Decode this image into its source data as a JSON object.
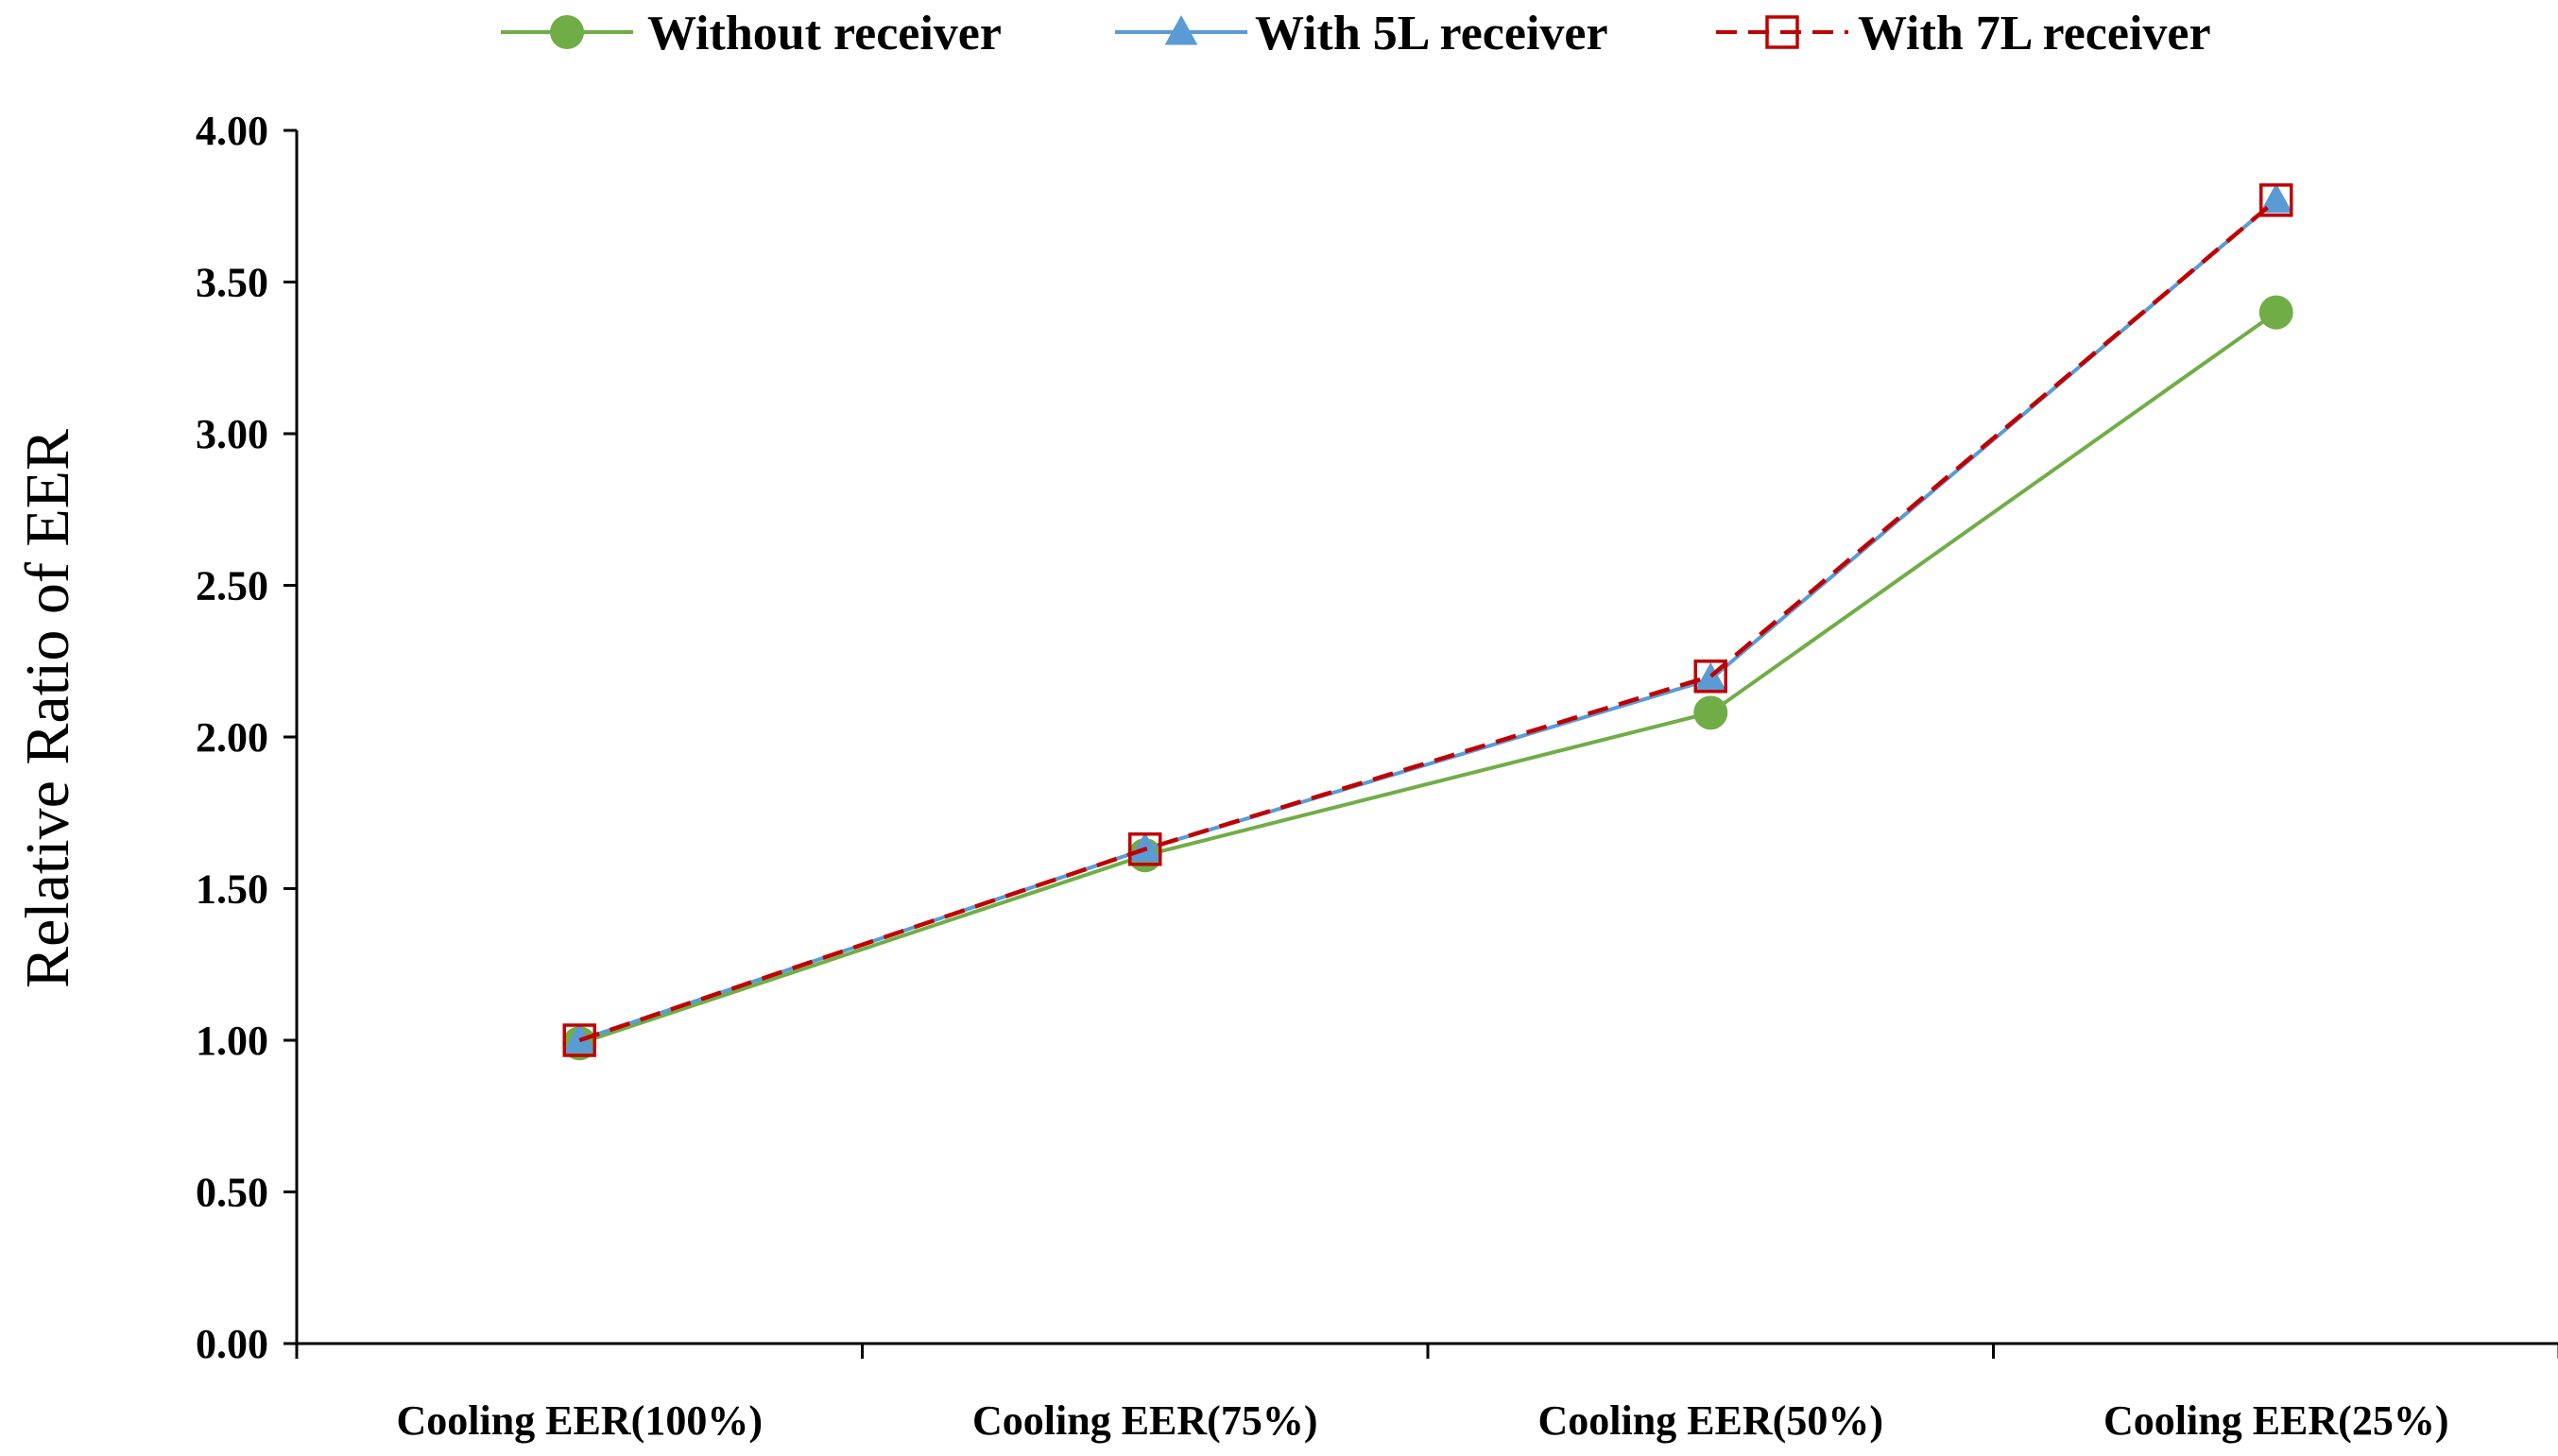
{
  "chart_data": {
    "type": "line",
    "title": "",
    "xlabel": "",
    "ylabel": "Relative Ratio  of  EER",
    "categories": [
      "Cooling EER(100%)",
      "Cooling EER(75%)",
      "Cooling EER(50%)",
      "Cooling EER(25%)"
    ],
    "ylim": [
      0,
      4
    ],
    "yticks": [
      "0.00",
      "0.50",
      "1.00",
      "1.50",
      "2.00",
      "2.50",
      "3.00",
      "3.50",
      "4.00"
    ],
    "grid": false,
    "legend_position": "top-center",
    "series": [
      {
        "name": "Without receiver",
        "values": [
          0.99,
          1.61,
          2.08,
          3.4
        ],
        "color": "#70AD47",
        "marker": "circle",
        "line_style": "solid"
      },
      {
        "name": "With 5L receiver",
        "values": [
          1.0,
          1.63,
          2.19,
          3.77
        ],
        "color": "#5B9BD5",
        "marker": "triangle",
        "line_style": "solid"
      },
      {
        "name": "With 7L receiver",
        "values": [
          1.0,
          1.63,
          2.2,
          3.77
        ],
        "color": "#C00000",
        "marker": "open-square",
        "line_style": "dashed"
      }
    ]
  }
}
